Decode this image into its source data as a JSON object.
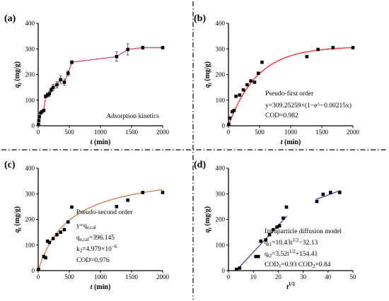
{
  "chart_data": [
    {
      "panel": "(a)",
      "type": "line",
      "xlabel_var": "t",
      "xlabel_unit": " (min)",
      "ylabel_var": "q",
      "ylabel_sub": "t",
      "ylabel_unit": " (mg/g)",
      "xlim": [
        0,
        2000
      ],
      "ylim": [
        0,
        400
      ],
      "xticks": [
        0,
        500,
        1000,
        1500,
        2000
      ],
      "yticks": [
        0,
        100,
        200,
        300,
        400
      ],
      "annotation": [
        "Adsorption kinetics"
      ],
      "line_color": "#e0407a",
      "series": [
        {
          "x": [
            5,
            10,
            20,
            40,
            60,
            90,
            120,
            150,
            180,
            210,
            240,
            300,
            360,
            420,
            480,
            540,
            1260,
            1440,
            1680,
            2000
          ],
          "y": [
            5,
            20,
            35,
            50,
            55,
            60,
            115,
            120,
            125,
            140,
            150,
            160,
            180,
            170,
            205,
            248,
            270,
            298,
            305,
            305
          ],
          "err": [
            0,
            0,
            0,
            0,
            0,
            0,
            6,
            8,
            10,
            8,
            12,
            12,
            15,
            12,
            10,
            6,
            18,
            22,
            6,
            4
          ]
        }
      ]
    },
    {
      "panel": "(b)",
      "type": "scatter",
      "xlabel_var": "t",
      "xlabel_unit": " (min)",
      "ylabel_var": "q",
      "ylabel_sub": "t",
      "ylabel_unit": " (mg/g)",
      "xlim": [
        0,
        2000
      ],
      "ylim": [
        0,
        400
      ],
      "xticks": [
        0,
        500,
        1000,
        1500,
        2000
      ],
      "yticks": [
        0,
        100,
        200,
        300,
        400
      ],
      "fit_color": "#ee2b2b",
      "fit": {
        "model": "pseudo-first",
        "qe": 309.25259,
        "k": 0.00215
      },
      "annotation": [
        "Pseudo-first order",
        "y=309.25259×(1−e^−0.00215x)",
        "COD=0.982"
      ],
      "points": {
        "x": [
          5,
          20,
          60,
          90,
          120,
          180,
          240,
          300,
          360,
          420,
          480,
          540,
          1260,
          1440,
          1680,
          2000
        ],
        "y": [
          5,
          30,
          55,
          60,
          115,
          120,
          140,
          160,
          175,
          170,
          205,
          248,
          270,
          298,
          305,
          305
        ]
      }
    },
    {
      "panel": "(c)",
      "type": "scatter",
      "xlabel_var": "t",
      "xlabel_unit": " (min)",
      "ylabel_var": "q",
      "ylabel_sub": "t",
      "ylabel_unit": " (mg/g)",
      "xlim": [
        0,
        2000
      ],
      "ylim": [
        0,
        400
      ],
      "xticks": [
        0,
        500,
        1000,
        1500,
        2000
      ],
      "yticks": [
        0,
        100,
        200,
        300,
        400
      ],
      "fit_color": "#c47a52",
      "fit": {
        "model": "pseudo-second",
        "qe": 396.145,
        "k": 4.979e-06
      },
      "annotation_title": "Pseudo-second order",
      "annotation_eq": "y=q",
      "annotation_eq_rest": "e,cal",
      "annotation_qe": "e,cal",
      "annotation_qe_val": "=396.145",
      "annotation_k": "=4.979×10",
      "annotation_k_exp": "−6",
      "annotation_cod": "COD=0.976",
      "points": {
        "x": [
          5,
          90,
          120,
          150,
          180,
          240,
          300,
          360,
          420,
          480,
          540,
          1260,
          1440,
          1680,
          2000
        ],
        "y": [
          5,
          55,
          50,
          115,
          110,
          125,
          140,
          150,
          160,
          190,
          248,
          250,
          275,
          305,
          305
        ]
      }
    },
    {
      "panel": "(d)",
      "type": "scatter",
      "xlabel_var": "t",
      "xlabel_exp": "1/2",
      "ylabel_var": "q",
      "ylabel_sub": "t",
      "ylabel_unit": " (mg/g)",
      "xlim": [
        0,
        50
      ],
      "ylim": [
        0,
        400
      ],
      "xticks": [
        0,
        10,
        20,
        30,
        40,
        50
      ],
      "yticks": [
        0,
        100,
        200,
        300,
        400
      ],
      "line_color": "#5a3d9a",
      "fit1": {
        "slope": 10.43,
        "intercept": -32.13,
        "xrange": [
          3.5,
          23.5
        ]
      },
      "fit2": {
        "slope": 3.52,
        "intercept": 154.41,
        "xrange": [
          35.2,
          45
        ]
      },
      "annotation": [
        "Intraparticle diffusion model",
        "q",
        "t1",
        "=10.43t",
        "1/2",
        "−32.13",
        "q",
        "t2",
        "=3.52t",
        "1/2",
        "+154.41",
        "COD",
        "1",
        "=0.93  COD",
        "2",
        "=0.84"
      ],
      "points": {
        "x": [
          3.2,
          4.5,
          11,
          12,
          13,
          15,
          16.5,
          18,
          19.5,
          20.5,
          22,
          23.3,
          35.5,
          38,
          41,
          44.7
        ],
        "y": [
          5,
          10,
          55,
          55,
          115,
          120,
          140,
          160,
          170,
          175,
          205,
          248,
          270,
          298,
          305,
          305
        ]
      }
    }
  ]
}
